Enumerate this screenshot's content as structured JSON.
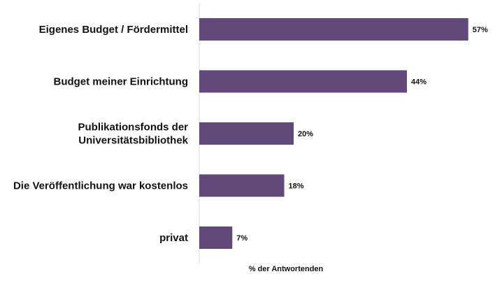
{
  "chart_data": {
    "type": "bar",
    "orientation": "horizontal",
    "categories": [
      "Eigenes Budget / Fördermittel",
      "Budget meiner Einrichtung",
      "Publikationsfonds der Universitätsbibliothek",
      "Die Veröffentlichung war kostenlos",
      "privat"
    ],
    "category_lines": [
      [
        "Eigenes Budget / Fördermittel"
      ],
      [
        "Budget meiner Einrichtung"
      ],
      [
        "Publikationsfonds der",
        "Universitätsbibliothek"
      ],
      [
        "Die Veröffentlichung war kostenlos"
      ],
      [
        "privat"
      ]
    ],
    "values": [
      57,
      44,
      20,
      18,
      7
    ],
    "value_labels": [
      "57%",
      "44%",
      "20%",
      "18%",
      "7%"
    ],
    "xlabel": "% der Antwortenden",
    "ylabel": "",
    "title": "",
    "xlim": [
      0,
      60
    ],
    "grid": false,
    "bar_color": "#614a7a",
    "axis_color": "#d9d9d9"
  }
}
